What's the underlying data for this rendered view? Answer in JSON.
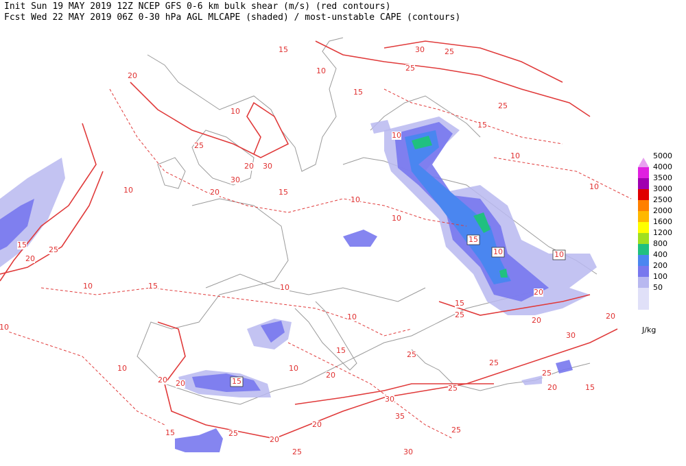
{
  "header": {
    "line1": "Init  Sun 19 MAY 2019 12Z  NCEP GFS 0-6 km bulk shear (m/s) (red contours)",
    "line2": "Fcst Wed 22 MAY 2019 06Z  0-30 hPa AGL MLCAPE (shaded) / most-unstable CAPE (contours)"
  },
  "legend": {
    "items": [
      {
        "label": 5000,
        "color": "#e8a0f0"
      },
      {
        "label": 4000,
        "color": "#e020e0"
      },
      {
        "label": 3500,
        "color": "#a000b0"
      },
      {
        "label": 3000,
        "color": "#e00000"
      },
      {
        "label": 2500,
        "color": "#ff8000"
      },
      {
        "label": 2000,
        "color": "#ffb800"
      },
      {
        "label": 1600,
        "color": "#ffff00"
      },
      {
        "label": 1200,
        "color": "#a0e020"
      },
      {
        "label": 800,
        "color": "#20c080"
      },
      {
        "label": 400,
        "color": "#4a86f0"
      },
      {
        "label": 200,
        "color": "#7878ee"
      },
      {
        "label": 100,
        "color": "#b8b8f0"
      },
      {
        "label": 50,
        "color": "#e0e0f8"
      }
    ],
    "unit": "J/kg"
  },
  "contour_labels": [
    15,
    30,
    25,
    25,
    10,
    15,
    20,
    10,
    25,
    15,
    10,
    10,
    25,
    20,
    30,
    30,
    10,
    20,
    15,
    10,
    10,
    10,
    15,
    25,
    20,
    15,
    10,
    10,
    10,
    15,
    10,
    15,
    20,
    25,
    20,
    20,
    30,
    10,
    10,
    15,
    25,
    10,
    10,
    20,
    25,
    25,
    20,
    20,
    15,
    20,
    15,
    25,
    30,
    35,
    20,
    20,
    25,
    15,
    25,
    30,
    25
  ]
}
